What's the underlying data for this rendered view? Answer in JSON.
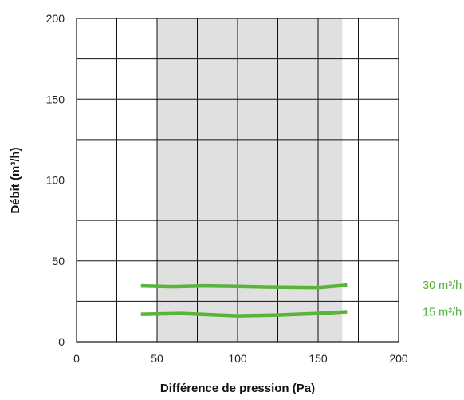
{
  "chart_data": {
    "type": "line",
    "xlabel": "Différence de pression (Pa)",
    "ylabel": "Débit (m³/h)",
    "xlim": [
      0,
      200
    ],
    "ylim": [
      0,
      200
    ],
    "x_ticks": [
      "0",
      "50",
      "100",
      "150",
      "200"
    ],
    "y_ticks": [
      "0",
      "50",
      "100",
      "150",
      "200"
    ],
    "grid": true,
    "shaded_x_range": [
      50,
      165
    ],
    "colors": {
      "series": "#5ab43a",
      "shade": "#e0e0e0",
      "grid": "#111111"
    },
    "series": [
      {
        "name": "30 m³/h",
        "x": [
          40,
          60,
          80,
          100,
          120,
          150,
          168
        ],
        "y": [
          34.5,
          34,
          34.5,
          34.2,
          33.8,
          33.5,
          35
        ]
      },
      {
        "name": "15 m³/h",
        "x": [
          40,
          65,
          100,
          125,
          150,
          168
        ],
        "y": [
          17,
          17.5,
          16,
          16.5,
          17.5,
          18.5
        ]
      }
    ]
  }
}
